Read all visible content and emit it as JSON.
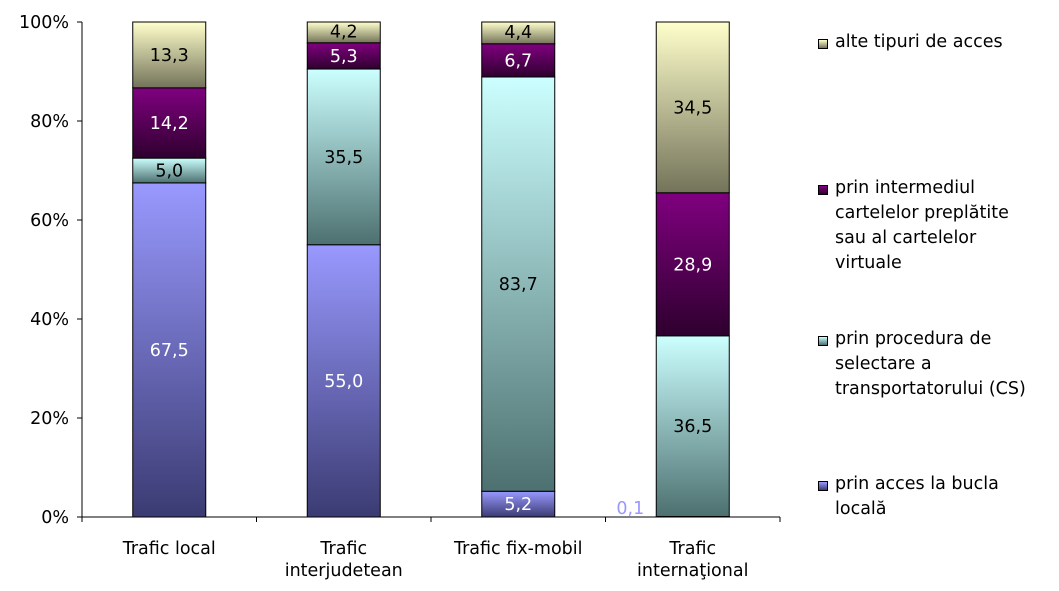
{
  "chart_data": {
    "type": "bar",
    "stacked": true,
    "percent": true,
    "title": "",
    "xlabel": "",
    "ylabel": "",
    "ylim": [
      0,
      100
    ],
    "y_ticks": [
      "0%",
      "20%",
      "40%",
      "60%",
      "80%",
      "100%"
    ],
    "categories": [
      [
        "Trafic local"
      ],
      [
        "Trafic",
        "interjudetean"
      ],
      [
        "Trafic fix-mobil"
      ],
      [
        "Trafic",
        "internaţional"
      ]
    ],
    "series": [
      {
        "name": "prin acces la bucla locală",
        "legend_lines": [
          "prin acces la bucla",
          "locală"
        ],
        "values": [
          67.5,
          55.0,
          5.2,
          0.1
        ],
        "labels": [
          "67,5",
          "55,0",
          "5,2",
          "0,1"
        ],
        "color_top": "#9999ff",
        "color_bottom": "#3b3b73"
      },
      {
        "name": "prin procedura de selectare a transportatorului (CS)",
        "legend_lines": [
          "prin procedura de",
          "selectare a",
          "transportatorului (CS)"
        ],
        "values": [
          5.0,
          35.5,
          83.7,
          36.5
        ],
        "labels": [
          "5,0",
          "35,5",
          "83,7",
          "36,5"
        ],
        "color_top": "#ccffff",
        "color_bottom": "#4d7070"
      },
      {
        "name": "prin intermediul cartelelor preplătite sau al cartelelor virtuale",
        "legend_lines": [
          "prin intermediul",
          "cartelelor preplătite",
          "sau al cartelelor",
          "virtuale"
        ],
        "values": [
          14.2,
          5.3,
          6.7,
          28.9
        ],
        "labels": [
          "14,2",
          "5,3",
          "6,7",
          "28,9"
        ],
        "color_top": "#800080",
        "color_bottom": "#2e002e"
      },
      {
        "name": "alte tipuri de acces",
        "legend_lines": [
          "alte tipuri de acces"
        ],
        "values": [
          13.3,
          4.2,
          4.4,
          34.5
        ],
        "labels": [
          "13,3",
          "4,2",
          "4,4",
          "34,5"
        ],
        "color_top": "#ffffcc",
        "color_bottom": "#73735a"
      }
    ],
    "legend_position": "right",
    "grid": false
  }
}
